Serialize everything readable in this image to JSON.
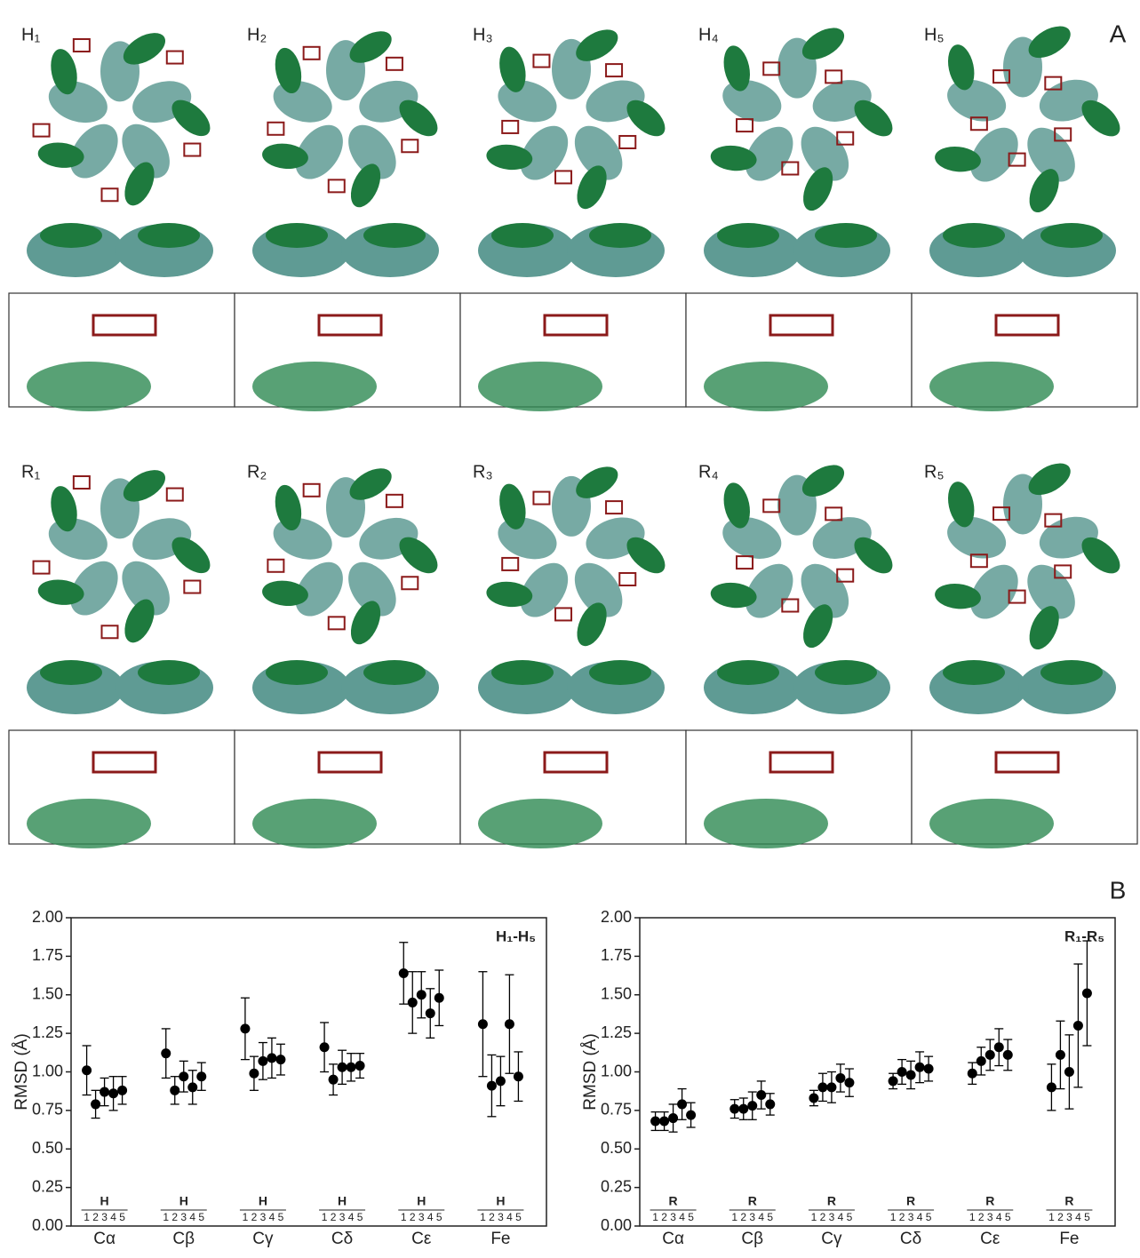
{
  "panel_a": {
    "label": "A",
    "top_row": [
      "H₁",
      "H₂",
      "H₃",
      "H₄",
      "H₅"
    ],
    "bottom_row": [
      "R₁",
      "R₂",
      "R₃",
      "R₄",
      "R₅"
    ]
  },
  "panel_b": {
    "label": "B"
  },
  "chart_data": [
    {
      "type": "errorbar-dot",
      "title": "H₁-H₅",
      "ylabel": "RMSD (Å)",
      "group_label": "H",
      "categories": [
        "Cα",
        "Cβ",
        "Cγ",
        "Cδ",
        "Cε",
        "Fe"
      ],
      "ylim": [
        0,
        2
      ],
      "yticks": [
        {
          "value": 0,
          "label": "0.00"
        },
        0.25,
        {
          "value": 0.5,
          "label": "0.50"
        },
        0.75,
        {
          "value": 1,
          "label": "1.00"
        },
        1.25,
        {
          "value": 1.5,
          "label": "1.50"
        },
        1.75,
        {
          "value": 2,
          "label": "2.00"
        }
      ],
      "color": "#000000",
      "series": [
        {
          "name": "1",
          "values": [
            1.01,
            1.12,
            1.28,
            1.16,
            1.64,
            1.31
          ],
          "errors": [
            0.16,
            0.16,
            0.2,
            0.16,
            0.2,
            0.34
          ]
        },
        {
          "name": "2",
          "values": [
            0.79,
            0.88,
            0.99,
            0.95,
            1.45,
            0.91
          ],
          "errors": [
            0.09,
            0.09,
            0.11,
            0.1,
            0.2,
            0.2
          ]
        },
        {
          "name": "3",
          "values": [
            0.87,
            0.97,
            1.07,
            1.03,
            1.5,
            0.94
          ],
          "errors": [
            0.09,
            0.1,
            0.12,
            0.11,
            0.15,
            0.16
          ]
        },
        {
          "name": "4",
          "values": [
            0.86,
            0.9,
            1.09,
            1.03,
            1.38,
            1.31
          ],
          "errors": [
            0.11,
            0.11,
            0.13,
            0.09,
            0.16,
            0.32
          ]
        },
        {
          "name": "5",
          "values": [
            0.88,
            0.97,
            1.08,
            1.04,
            1.48,
            0.97
          ],
          "errors": [
            0.09,
            0.09,
            0.1,
            0.08,
            0.18,
            0.16
          ]
        }
      ]
    },
    {
      "type": "errorbar-dot",
      "title": "R₁-R₅",
      "ylabel": "RMSD (Å)",
      "group_label": "R",
      "categories": [
        "Cα",
        "Cβ",
        "Cγ",
        "Cδ",
        "Cε",
        "Fe"
      ],
      "ylim": [
        0,
        2
      ],
      "yticks": [
        {
          "value": 0,
          "label": "0.00"
        },
        0.25,
        {
          "value": 0.5,
          "label": "0.50"
        },
        0.75,
        {
          "value": 1,
          "label": "1.00"
        },
        1.25,
        {
          "value": 1.5,
          "label": "1.50"
        },
        1.75,
        {
          "value": 2,
          "label": "2.00"
        }
      ],
      "color": "#000000",
      "series": [
        {
          "name": "1",
          "values": [
            0.68,
            0.76,
            0.83,
            0.94,
            0.99,
            0.9
          ],
          "errors": [
            0.06,
            0.06,
            0.05,
            0.05,
            0.07,
            0.15
          ]
        },
        {
          "name": "2",
          "values": [
            0.68,
            0.76,
            0.9,
            1.0,
            1.07,
            1.11
          ],
          "errors": [
            0.06,
            0.07,
            0.09,
            0.08,
            0.09,
            0.22
          ]
        },
        {
          "name": "3",
          "values": [
            0.7,
            0.78,
            0.9,
            0.98,
            1.11,
            1.0
          ],
          "errors": [
            0.09,
            0.09,
            0.1,
            0.09,
            0.1,
            0.24
          ]
        },
        {
          "name": "4",
          "values": [
            0.79,
            0.85,
            0.96,
            1.03,
            1.16,
            1.3
          ],
          "errors": [
            0.1,
            0.09,
            0.09,
            0.1,
            0.12,
            0.4
          ]
        },
        {
          "name": "5",
          "values": [
            0.72,
            0.79,
            0.93,
            1.02,
            1.11,
            1.51
          ],
          "errors": [
            0.08,
            0.07,
            0.09,
            0.08,
            0.1,
            0.34
          ]
        }
      ]
    }
  ]
}
